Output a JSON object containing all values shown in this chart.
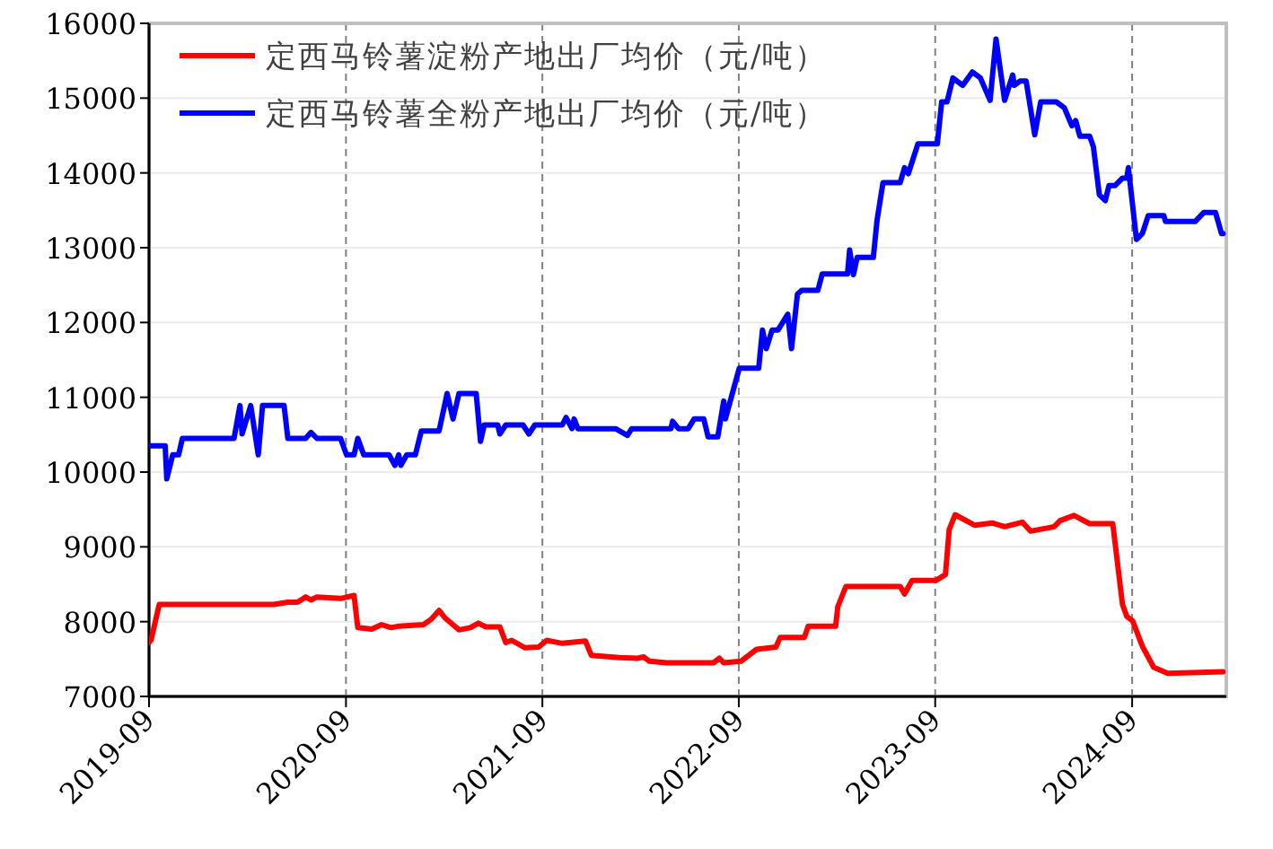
{
  "chart_data": {
    "type": "line",
    "xlim": [
      "2019-09-01",
      "2025-02-23"
    ],
    "ylim": [
      7000,
      16000
    ],
    "xticks": [
      "2019-09",
      "2020-09",
      "2021-09",
      "2022-09",
      "2023-09",
      "2024-09"
    ],
    "yticks": [
      7000,
      8000,
      9000,
      10000,
      11000,
      12000,
      13000,
      14000,
      15000,
      16000
    ],
    "grid": true,
    "legend": "top left",
    "marker": "none",
    "line_style": "solid",
    "series": [
      {
        "name": "定西马铃薯淀粉产地出厂均价（元/吨）",
        "color": "#ff0000",
        "x": [
          "2019-09-01",
          "2019-09-05",
          "2019-09-20",
          "2020-04-20",
          "2020-05-16",
          "2020-06-03",
          "2020-06-18",
          "2020-06-28",
          "2020-07-09",
          "2020-08-22",
          "2020-09-16",
          "2020-09-23",
          "2020-10-19",
          "2020-11-06",
          "2020-11-24",
          "2020-12-08",
          "2021-01-23",
          "2021-02-06",
          "2021-02-21",
          "2021-03-04",
          "2021-03-30",
          "2021-04-20",
          "2021-05-05",
          "2021-05-19",
          "2021-06-14",
          "2021-06-25",
          "2021-07-06",
          "2021-07-31",
          "2021-08-25",
          "2021-09-09",
          "2021-10-08",
          "2021-11-20",
          "2021-12-01",
          "2022-01-23",
          "2022-02-25",
          "2022-03-08",
          "2022-03-19",
          "2022-04-20",
          "2022-07-16",
          "2022-07-27",
          "2022-08-04",
          "2022-09-05",
          "2022-10-04",
          "2022-11-09",
          "2022-11-17",
          "2023-01-01",
          "2023-01-08",
          "2023-02-28",
          "2023-03-04",
          "2023-03-19",
          "2023-06-28",
          "2023-07-06",
          "2023-07-20",
          "2023-09-02",
          "2023-09-20",
          "2023-09-27",
          "2023-10-08",
          "2023-11-13",
          "2023-12-16",
          "2024-01-08",
          "2024-02-10",
          "2024-02-25",
          "2024-04-09",
          "2024-04-20",
          "2024-05-16",
          "2024-06-14",
          "2024-07-27",
          "2024-08-14",
          "2024-08-22",
          "2024-09-02",
          "2024-09-20",
          "2024-10-11",
          "2024-11-06",
          "2025-02-17"
        ],
        "values": [
          7720,
          7760,
          8230,
          8230,
          8260,
          8260,
          8330,
          8290,
          8330,
          8310,
          8350,
          7920,
          7900,
          7960,
          7920,
          7940,
          7960,
          8030,
          8150,
          8050,
          7890,
          7920,
          7980,
          7930,
          7930,
          7720,
          7750,
          7650,
          7660,
          7750,
          7710,
          7740,
          7550,
          7520,
          7510,
          7530,
          7470,
          7450,
          7450,
          7510,
          7450,
          7470,
          7630,
          7660,
          7790,
          7790,
          7940,
          7940,
          8200,
          8470,
          8470,
          8370,
          8550,
          8550,
          8630,
          9230,
          9430,
          9290,
          9320,
          9270,
          9330,
          9210,
          9270,
          9350,
          9420,
          9310,
          9310,
          8230,
          8070,
          8010,
          7670,
          7390,
          7310,
          7330
        ]
      },
      {
        "name": "定西马铃薯全粉产地出厂均价（元/吨）",
        "color": "#0000ff",
        "x": [
          "2019-09-01",
          "2019-10-01",
          "2019-10-04",
          "2019-10-15",
          "2019-10-26",
          "2019-11-02",
          "2020-02-06",
          "2020-02-17",
          "2020-02-21",
          "2020-03-08",
          "2020-03-22",
          "2020-03-30",
          "2020-05-09",
          "2020-05-16",
          "2020-06-18",
          "2020-06-28",
          "2020-07-09",
          "2020-08-22",
          "2020-09-02",
          "2020-09-16",
          "2020-09-23",
          "2020-10-04",
          "2020-11-20",
          "2020-12-01",
          "2020-12-08",
          "2020-12-12",
          "2020-12-23",
          "2021-01-08",
          "2021-01-19",
          "2021-02-21",
          "2021-03-08",
          "2021-03-19",
          "2021-03-30",
          "2021-05-01",
          "2021-05-09",
          "2021-05-16",
          "2021-06-10",
          "2021-06-14",
          "2021-06-25",
          "2021-07-27",
          "2021-08-07",
          "2021-08-18",
          "2021-10-08",
          "2021-10-15",
          "2021-10-26",
          "2021-10-30",
          "2021-11-06",
          "2022-01-15",
          "2022-02-06",
          "2022-02-14",
          "2022-04-28",
          "2022-05-01",
          "2022-05-12",
          "2022-05-30",
          "2022-06-10",
          "2022-06-28",
          "2022-07-06",
          "2022-07-24",
          "2022-08-04",
          "2022-08-07",
          "2022-09-02",
          "2022-10-08",
          "2022-10-15",
          "2022-10-22",
          "2022-11-02",
          "2022-11-13",
          "2022-12-01",
          "2022-12-08",
          "2022-12-19",
          "2022-12-27",
          "2023-01-26",
          "2023-02-03",
          "2023-03-22",
          "2023-03-26",
          "2023-04-02",
          "2023-04-09",
          "2023-05-09",
          "2023-05-16",
          "2023-05-27",
          "2023-06-28",
          "2023-07-06",
          "2023-07-13",
          "2023-07-31",
          "2023-09-05",
          "2023-09-13",
          "2023-09-23",
          "2023-10-04",
          "2023-10-22",
          "2023-11-09",
          "2023-11-24",
          "2023-12-12",
          "2023-12-23",
          "2024-01-08",
          "2024-01-23",
          "2024-01-26",
          "2024-02-06",
          "2024-02-17",
          "2024-03-04",
          "2024-03-15",
          "2024-04-13",
          "2024-04-28",
          "2024-05-12",
          "2024-05-19",
          "2024-05-27",
          "2024-06-14",
          "2024-06-21",
          "2024-07-02",
          "2024-07-13",
          "2024-07-20",
          "2024-07-31",
          "2024-08-14",
          "2024-08-22",
          "2024-08-25",
          "2024-09-09",
          "2024-09-20",
          "2024-10-01",
          "2024-10-30",
          "2024-11-02",
          "2024-12-27",
          "2025-01-12",
          "2025-02-03",
          "2025-02-14",
          "2025-02-17"
        ],
        "values": [
          10350,
          10350,
          9910,
          10230,
          10230,
          10450,
          10450,
          10890,
          10510,
          10890,
          10230,
          10890,
          10890,
          10450,
          10450,
          10530,
          10450,
          10450,
          10230,
          10230,
          10450,
          10230,
          10230,
          10090,
          10230,
          10090,
          10230,
          10230,
          10550,
          10550,
          11050,
          10710,
          11050,
          11050,
          10410,
          10630,
          10630,
          10510,
          10630,
          10630,
          10510,
          10630,
          10630,
          10730,
          10580,
          10710,
          10580,
          10580,
          10490,
          10580,
          10580,
          10680,
          10580,
          10580,
          10710,
          10710,
          10470,
          10470,
          10950,
          10710,
          11390,
          11390,
          11900,
          11650,
          11900,
          11900,
          12110,
          11650,
          12380,
          12430,
          12430,
          12650,
          12650,
          12970,
          12640,
          12870,
          12870,
          13370,
          13870,
          13870,
          14070,
          13990,
          14390,
          14390,
          14950,
          14950,
          15270,
          15170,
          15350,
          15270,
          14970,
          15790,
          14970,
          15310,
          15170,
          15230,
          15230,
          14510,
          14950,
          14950,
          14870,
          14630,
          14700,
          14490,
          14490,
          14350,
          13710,
          13630,
          13830,
          13830,
          13930,
          13930,
          14070,
          13110,
          13190,
          13430,
          13430,
          13350,
          13350,
          13470,
          13470,
          13190,
          13190
        ]
      }
    ]
  }
}
